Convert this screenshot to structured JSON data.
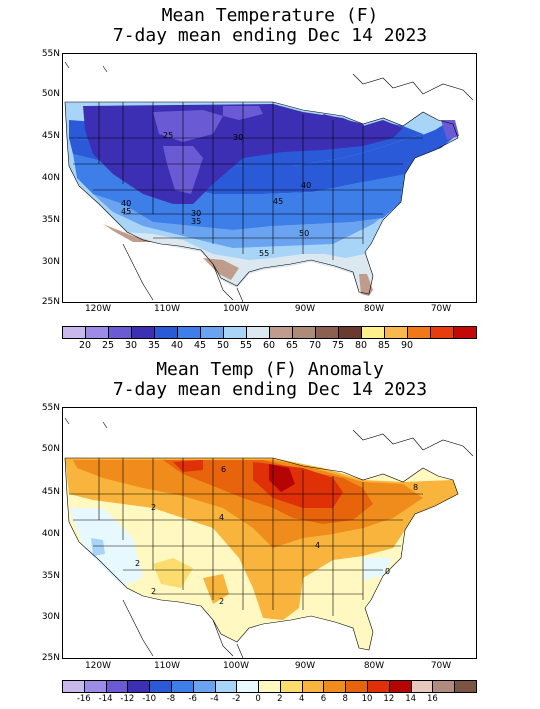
{
  "panel1": {
    "title_line1": "Mean Temperature (F)",
    "title_line2": "7-day mean ending Dec 14 2023",
    "y_ticks": [
      "55N",
      "50N",
      "45N",
      "40N",
      "35N",
      "30N",
      "25N"
    ],
    "x_ticks": [
      "120W",
      "110W",
      "100W",
      "90W",
      "80W",
      "70W"
    ],
    "contour_labels": [
      "25",
      "30",
      "40",
      "45",
      "40",
      "45",
      "30",
      "35",
      "50",
      "55"
    ],
    "colorbar": {
      "colors": [
        "#c8b8ec",
        "#9c8ce8",
        "#6a5ad4",
        "#3c2fb4",
        "#2a5ad8",
        "#3d7ee8",
        "#6aa4f0",
        "#a8d4f8",
        "#dce8f0",
        "#c09c8c",
        "#ad8a7a",
        "#8c6050",
        "#6a3a30",
        "#fff08c",
        "#f8b84c",
        "#f07818",
        "#e83c0c",
        "#c40808"
      ],
      "labels": [
        "20",
        "25",
        "30",
        "35",
        "40",
        "45",
        "50",
        "55",
        "60",
        "65",
        "70",
        "75",
        "80",
        "85",
        "90"
      ]
    }
  },
  "panel2": {
    "title_line1": "Mean Temp (F) Anomaly",
    "title_line2": "7-day mean ending Dec 14 2023",
    "y_ticks": [
      "55N",
      "50N",
      "45N",
      "40N",
      "35N",
      "30N",
      "25N"
    ],
    "x_ticks": [
      "120W",
      "110W",
      "100W",
      "90W",
      "80W",
      "70W"
    ],
    "contour_labels": [
      "2",
      "4",
      "6",
      "2",
      "4",
      "2",
      "2",
      "0",
      "8"
    ],
    "colorbar": {
      "colors": [
        "#c8b8ec",
        "#9c8ce8",
        "#6a5ad4",
        "#3c2fb4",
        "#2a5ad8",
        "#3d7ee8",
        "#6aa4f0",
        "#a8d4f8",
        "#e8f8ff",
        "#fff8c0",
        "#fcdc6c",
        "#f8b43c",
        "#f08c1c",
        "#e8640c",
        "#e03008",
        "#b40404",
        "#e8c8bc",
        "#b08c80",
        "#7c5444"
      ],
      "labels": [
        "-16",
        "-14",
        "-12",
        "-10",
        "-8",
        "-6",
        "-4",
        "-2",
        "0",
        "2",
        "4",
        "6",
        "8",
        "10",
        "12",
        "14",
        "16"
      ]
    }
  }
}
